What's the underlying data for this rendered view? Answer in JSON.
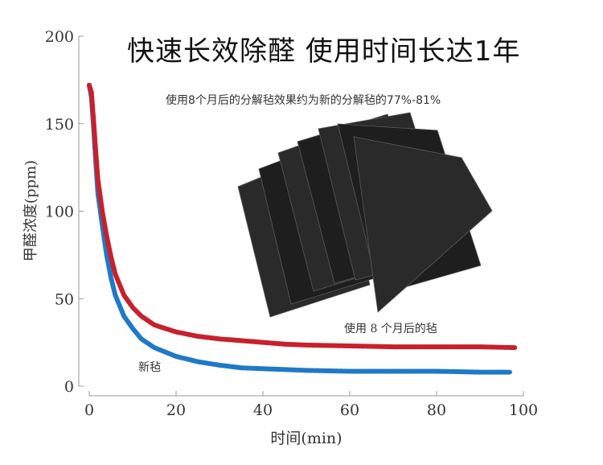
{
  "headline": "快速长效除醛  使用时间长达1年",
  "note": "使用8个月后的分解毡效果约为新的分解毡的77%-81%",
  "colors": {
    "aged": "#c8202c",
    "fresh": "#1f78c8",
    "axis": "#999999",
    "felt": "#222222"
  },
  "chart_data": {
    "type": "line",
    "xlabel": "时间(min)",
    "ylabel": "甲醛浓度(ppm)",
    "xlim": [
      0,
      100
    ],
    "ylim": [
      0,
      200
    ],
    "xticks": [
      0,
      20,
      40,
      60,
      80,
      100
    ],
    "yticks": [
      0,
      50,
      100,
      150,
      200
    ],
    "grid": false,
    "legend": "inline labels",
    "series": [
      {
        "name": "使用 8 个月后的毡",
        "color": "#c8202c",
        "x": [
          0,
          0.5,
          1,
          1.5,
          2,
          3,
          4,
          5,
          6,
          8,
          10,
          12,
          15,
          20,
          25,
          30,
          35,
          40,
          45,
          50,
          60,
          70,
          80,
          90,
          98
        ],
        "y": [
          172,
          168,
          152,
          134,
          118,
          100,
          86,
          74,
          64,
          52,
          45,
          40,
          35,
          31,
          28.5,
          27,
          26,
          25,
          24,
          23.5,
          23,
          22.5,
          22.5,
          22.5,
          22
        ]
      },
      {
        "name": "新毡",
        "color": "#1f78c8",
        "x": [
          0,
          0.5,
          1,
          1.5,
          2,
          3,
          4,
          5,
          6,
          8,
          10,
          12,
          15,
          20,
          25,
          30,
          35,
          40,
          45,
          50,
          60,
          70,
          80,
          90,
          97
        ],
        "y": [
          172,
          165,
          148,
          128,
          110,
          92,
          75,
          62,
          52,
          40,
          33,
          27,
          22,
          17,
          14,
          12,
          10.5,
          10,
          9.5,
          9,
          8.5,
          8.5,
          8.5,
          8,
          8
        ]
      }
    ]
  }
}
